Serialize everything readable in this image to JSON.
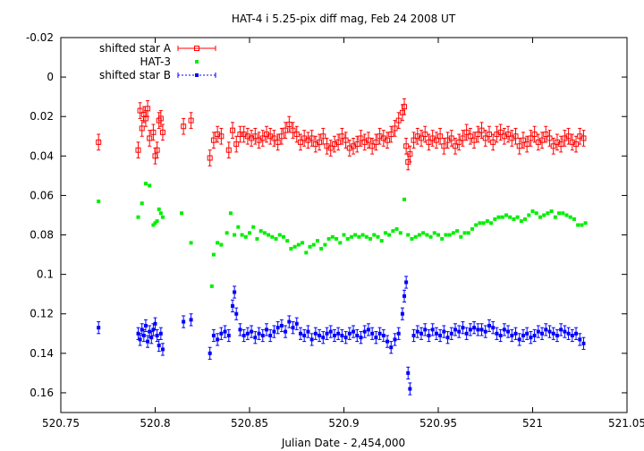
{
  "chart_data": {
    "type": "scatter",
    "title": "HAT-4 i 5.25-pix diff mag, Feb 24 2008 UT",
    "xlabel": "Julian Date - 2,454,000",
    "ylabel": "",
    "xlim": [
      520.75,
      521.05
    ],
    "ylim": [
      -0.02,
      0.17
    ],
    "y_inverted": true,
    "grid": false,
    "legend_position": "top-left",
    "x_ticks": [
      520.75,
      520.8,
      520.85,
      520.9,
      520.95,
      521,
      521.05
    ],
    "x_tick_labels": [
      "520.75",
      "520.8",
      "520.85",
      "520.9",
      "520.95",
      "521",
      "521.05"
    ],
    "y_ticks": [
      -0.02,
      0,
      0.02,
      0.04,
      0.06,
      0.08,
      0.1,
      0.12,
      0.14,
      0.16
    ],
    "y_tick_labels": [
      "-0.02",
      "0",
      "0.02",
      "0.04",
      "0.06",
      "0.08",
      "0.1",
      "0.12",
      "0.14",
      "0.16"
    ],
    "series": [
      {
        "name": "shifted star A",
        "color": "#ff0000",
        "marker": "open-square",
        "error_bars": 0.004,
        "x": [
          520.77,
          520.791,
          520.792,
          520.793,
          520.794,
          520.795,
          520.796,
          520.797,
          520.799,
          520.8,
          520.801,
          520.802,
          520.803,
          520.804,
          520.815,
          520.819,
          520.829,
          520.831,
          520.833,
          520.835,
          520.839,
          520.841,
          520.843,
          520.845,
          520.847,
          520.849,
          520.851,
          520.853,
          520.855,
          520.857,
          520.859,
          520.861,
          520.863,
          520.865,
          520.867,
          520.869,
          520.871,
          520.873,
          520.875,
          520.877,
          520.879,
          520.881,
          520.883,
          520.885,
          520.887,
          520.889,
          520.891,
          520.893,
          520.895,
          520.897,
          520.899,
          520.901,
          520.903,
          520.905,
          520.907,
          520.909,
          520.911,
          520.913,
          520.915,
          520.917,
          520.919,
          520.921,
          520.923,
          520.925,
          520.927,
          520.929,
          520.931,
          520.932,
          520.933,
          520.934,
          520.935,
          520.937,
          520.939,
          520.941,
          520.943,
          520.945,
          520.947,
          520.949,
          520.951,
          520.953,
          520.955,
          520.957,
          520.959,
          520.961,
          520.963,
          520.965,
          520.967,
          520.969,
          520.971,
          520.973,
          520.975,
          520.977,
          520.979,
          520.981,
          520.983,
          520.985,
          520.987,
          520.989,
          520.991,
          520.993,
          520.995,
          520.997,
          520.999,
          521.001,
          521.003,
          521.005,
          521.007,
          521.009,
          521.011,
          521.013,
          521.015,
          521.017,
          521.019,
          521.021,
          521.023,
          521.025,
          521.027
        ],
        "y": [
          0.033,
          0.037,
          0.017,
          0.026,
          0.019,
          0.021,
          0.016,
          0.031,
          0.028,
          0.04,
          0.037,
          0.022,
          0.021,
          0.028,
          0.025,
          0.022,
          0.041,
          0.032,
          0.029,
          0.03,
          0.037,
          0.027,
          0.034,
          0.029,
          0.029,
          0.03,
          0.031,
          0.03,
          0.032,
          0.031,
          0.029,
          0.03,
          0.031,
          0.033,
          0.03,
          0.027,
          0.024,
          0.027,
          0.029,
          0.033,
          0.031,
          0.032,
          0.031,
          0.034,
          0.033,
          0.03,
          0.035,
          0.036,
          0.034,
          0.033,
          0.03,
          0.032,
          0.036,
          0.035,
          0.034,
          0.031,
          0.033,
          0.032,
          0.035,
          0.033,
          0.03,
          0.031,
          0.032,
          0.029,
          0.026,
          0.022,
          0.018,
          0.015,
          0.035,
          0.043,
          0.039,
          0.032,
          0.03,
          0.031,
          0.029,
          0.033,
          0.031,
          0.032,
          0.03,
          0.035,
          0.032,
          0.031,
          0.035,
          0.033,
          0.031,
          0.028,
          0.03,
          0.032,
          0.029,
          0.027,
          0.031,
          0.029,
          0.033,
          0.029,
          0.028,
          0.03,
          0.029,
          0.031,
          0.03,
          0.035,
          0.032,
          0.034,
          0.031,
          0.029,
          0.033,
          0.032,
          0.029,
          0.031,
          0.035,
          0.033,
          0.034,
          0.031,
          0.03,
          0.033,
          0.034,
          0.03,
          0.031
        ]
      },
      {
        "name": "HAT-3",
        "color": "#00ee00",
        "marker": "filled-square",
        "x": [
          520.77,
          520.791,
          520.793,
          520.795,
          520.797,
          520.799,
          520.8,
          520.801,
          520.802,
          520.803,
          520.804,
          520.814,
          520.819,
          520.83,
          520.831,
          520.833,
          520.835,
          520.838,
          520.84,
          520.842,
          520.844,
          520.846,
          520.848,
          520.85,
          520.852,
          520.854,
          520.856,
          520.858,
          520.86,
          520.862,
          520.864,
          520.866,
          520.868,
          520.87,
          520.872,
          520.874,
          520.876,
          520.878,
          520.88,
          520.882,
          520.884,
          520.886,
          520.888,
          520.89,
          520.892,
          520.894,
          520.896,
          520.898,
          520.9,
          520.902,
          520.904,
          520.906,
          520.908,
          520.91,
          520.912,
          520.914,
          520.916,
          520.918,
          520.92,
          520.922,
          520.924,
          520.926,
          520.928,
          520.93,
          520.932,
          520.934,
          520.936,
          520.938,
          520.94,
          520.942,
          520.944,
          520.946,
          520.948,
          520.95,
          520.952,
          520.954,
          520.956,
          520.958,
          520.96,
          520.962,
          520.964,
          520.966,
          520.968,
          520.97,
          520.972,
          520.974,
          520.976,
          520.978,
          520.98,
          520.982,
          520.984,
          520.986,
          520.988,
          520.99,
          520.992,
          520.994,
          520.996,
          520.998,
          521.0,
          521.002,
          521.004,
          521.006,
          521.008,
          521.01,
          521.012,
          521.014,
          521.016,
          521.018,
          521.02,
          521.022,
          521.024,
          521.026,
          521.028
        ],
        "y": [
          0.063,
          0.071,
          0.064,
          0.054,
          0.055,
          0.075,
          0.074,
          0.073,
          0.067,
          0.069,
          0.071,
          0.069,
          0.084,
          0.106,
          0.09,
          0.084,
          0.085,
          0.079,
          0.069,
          0.08,
          0.076,
          0.08,
          0.081,
          0.079,
          0.076,
          0.082,
          0.078,
          0.079,
          0.08,
          0.081,
          0.082,
          0.08,
          0.081,
          0.083,
          0.087,
          0.086,
          0.085,
          0.084,
          0.089,
          0.086,
          0.085,
          0.083,
          0.087,
          0.085,
          0.082,
          0.081,
          0.082,
          0.084,
          0.08,
          0.082,
          0.081,
          0.08,
          0.081,
          0.08,
          0.081,
          0.082,
          0.08,
          0.081,
          0.083,
          0.079,
          0.08,
          0.078,
          0.077,
          0.079,
          0.062,
          0.08,
          0.082,
          0.081,
          0.08,
          0.079,
          0.08,
          0.081,
          0.079,
          0.08,
          0.082,
          0.08,
          0.08,
          0.079,
          0.078,
          0.081,
          0.079,
          0.079,
          0.077,
          0.075,
          0.074,
          0.074,
          0.073,
          0.074,
          0.072,
          0.071,
          0.071,
          0.07,
          0.071,
          0.072,
          0.071,
          0.073,
          0.072,
          0.07,
          0.068,
          0.069,
          0.071,
          0.07,
          0.069,
          0.068,
          0.071,
          0.069,
          0.069,
          0.07,
          0.071,
          0.072,
          0.075,
          0.075,
          0.074
        ]
      },
      {
        "name": "shifted star B",
        "color": "#0000ff",
        "marker": "filled-square",
        "error_bars": 0.003,
        "x": [
          520.77,
          520.791,
          520.792,
          520.793,
          520.794,
          520.795,
          520.796,
          520.797,
          520.798,
          520.799,
          520.8,
          520.801,
          520.802,
          520.803,
          520.804,
          520.815,
          520.819,
          520.829,
          520.831,
          520.833,
          520.835,
          520.837,
          520.839,
          520.841,
          520.842,
          520.843,
          520.845,
          520.847,
          520.849,
          520.851,
          520.853,
          520.855,
          520.857,
          520.859,
          520.861,
          520.863,
          520.865,
          520.867,
          520.869,
          520.871,
          520.873,
          520.875,
          520.877,
          520.879,
          520.881,
          520.883,
          520.885,
          520.887,
          520.889,
          520.891,
          520.893,
          520.895,
          520.897,
          520.899,
          520.901,
          520.903,
          520.905,
          520.907,
          520.909,
          520.911,
          520.913,
          520.915,
          520.917,
          520.919,
          520.921,
          520.923,
          520.925,
          520.927,
          520.929,
          520.931,
          520.932,
          520.933,
          520.934,
          520.935,
          520.937,
          520.939,
          520.941,
          520.943,
          520.945,
          520.947,
          520.949,
          520.951,
          520.953,
          520.955,
          520.957,
          520.959,
          520.961,
          520.963,
          520.965,
          520.967,
          520.969,
          520.971,
          520.973,
          520.975,
          520.977,
          520.979,
          520.981,
          520.983,
          520.985,
          520.987,
          520.989,
          520.991,
          520.993,
          520.995,
          520.997,
          520.999,
          521.001,
          521.003,
          521.005,
          521.007,
          521.009,
          521.011,
          521.013,
          521.015,
          521.017,
          521.019,
          521.021,
          521.023,
          521.025,
          521.027
        ],
        "y": [
          0.127,
          0.13,
          0.133,
          0.128,
          0.131,
          0.126,
          0.134,
          0.129,
          0.132,
          0.128,
          0.125,
          0.131,
          0.136,
          0.13,
          0.138,
          0.124,
          0.123,
          0.14,
          0.131,
          0.133,
          0.13,
          0.129,
          0.131,
          0.116,
          0.109,
          0.12,
          0.128,
          0.131,
          0.13,
          0.129,
          0.132,
          0.13,
          0.131,
          0.128,
          0.131,
          0.129,
          0.127,
          0.126,
          0.129,
          0.124,
          0.127,
          0.125,
          0.13,
          0.131,
          0.129,
          0.133,
          0.13,
          0.131,
          0.132,
          0.13,
          0.129,
          0.131,
          0.13,
          0.131,
          0.132,
          0.13,
          0.129,
          0.131,
          0.132,
          0.129,
          0.128,
          0.13,
          0.132,
          0.13,
          0.131,
          0.134,
          0.137,
          0.133,
          0.13,
          0.12,
          0.111,
          0.104,
          0.15,
          0.158,
          0.131,
          0.129,
          0.13,
          0.128,
          0.131,
          0.128,
          0.13,
          0.131,
          0.129,
          0.132,
          0.13,
          0.128,
          0.129,
          0.127,
          0.13,
          0.128,
          0.127,
          0.128,
          0.128,
          0.129,
          0.126,
          0.127,
          0.13,
          0.131,
          0.128,
          0.129,
          0.131,
          0.13,
          0.133,
          0.131,
          0.13,
          0.132,
          0.131,
          0.129,
          0.13,
          0.128,
          0.129,
          0.13,
          0.131,
          0.128,
          0.129,
          0.13,
          0.131,
          0.13,
          0.133,
          0.135
        ]
      }
    ]
  }
}
